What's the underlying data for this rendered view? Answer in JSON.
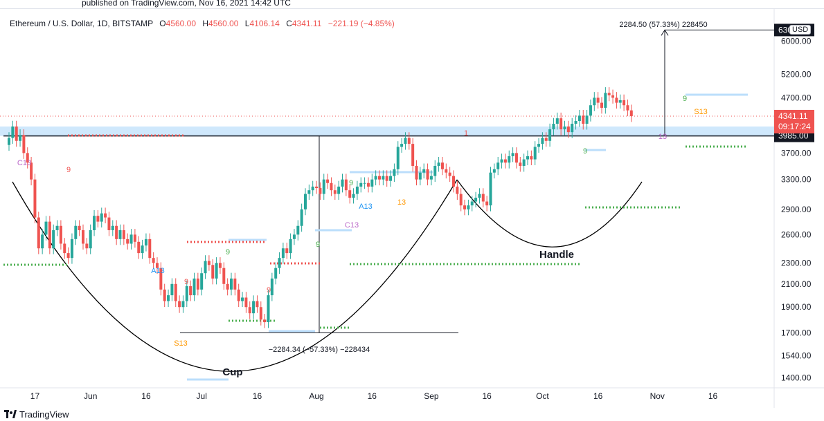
{
  "published_note": "published on TradingView.com, Nov 16, 2021 14:42 UTC",
  "legend": {
    "symbol": "Ethereum / U.S. Dollar, 1D, BITSTAMP",
    "o_label": "O",
    "o": "4560.00",
    "h_label": "H",
    "h": "4560.00",
    "l_label": "L",
    "l": "4106.14",
    "c_label": "C",
    "c": "4341.11",
    "change": "−221.19 (−4.85%)"
  },
  "currency": "USD",
  "brand": "TradingView",
  "colors": {
    "up": "#26a69a",
    "down": "#ef5350",
    "resistance_dot": "#ef5350",
    "support_dot": "#4caf50",
    "zone": "#bbdefb",
    "label_dark": "#131722"
  },
  "chart_data": {
    "type": "candlestick",
    "symbol": "ETHUSD",
    "timeframe": "1D",
    "y_scale": "log",
    "ylim": [
      1340,
      6900
    ],
    "y_ticks": [
      1400,
      1540,
      1700,
      1900,
      2100,
      2300,
      2600,
      2900,
      3300,
      3700,
      4700,
      5200,
      6000
    ],
    "x_ticks": [
      {
        "date": "2021-05-17",
        "label": "17"
      },
      {
        "date": "2021-06-01",
        "label": "Jun"
      },
      {
        "date": "2021-06-16",
        "label": "16"
      },
      {
        "date": "2021-07-01",
        "label": "Jul"
      },
      {
        "date": "2021-07-16",
        "label": "16"
      },
      {
        "date": "2021-08-01",
        "label": "Aug"
      },
      {
        "date": "2021-08-16",
        "label": "16"
      },
      {
        "date": "2021-09-01",
        "label": "Sep"
      },
      {
        "date": "2021-09-16",
        "label": "16"
      },
      {
        "date": "2021-10-01",
        "label": "Oct"
      },
      {
        "date": "2021-10-16",
        "label": "16"
      },
      {
        "date": "2021-11-01",
        "label": "Nov"
      },
      {
        "date": "2021-11-16",
        "label": "16"
      }
    ],
    "first_date": "2021-05-10",
    "last_date": "2021-11-16",
    "closes": [
      3950,
      4150,
      3900,
      4000,
      3700,
      3550,
      3300,
      2800,
      2450,
      2600,
      2750,
      2450,
      2650,
      2700,
      2500,
      2400,
      2350,
      2550,
      2700,
      2650,
      2500,
      2450,
      2650,
      2820,
      2750,
      2850,
      2800,
      2650,
      2700,
      2550,
      2650,
      2550,
      2500,
      2600,
      2520,
      2400,
      2480,
      2550,
      2350,
      2300,
      2250,
      2050,
      1950,
      2000,
      2100,
      1950,
      1900,
      1950,
      2080,
      2000,
      2150,
      2050,
      2200,
      2320,
      2280,
      2150,
      2300,
      2250,
      2100,
      2050,
      2150,
      2050,
      1950,
      1980,
      1900,
      1850,
      1950,
      1900,
      1800,
      1780,
      2000,
      2150,
      2250,
      2350,
      2450,
      2400,
      2550,
      2600,
      2700,
      2900,
      3100,
      3150,
      3200,
      3180,
      3100,
      3300,
      3250,
      3150,
      3100,
      3200,
      3300,
      3150,
      3050,
      3100,
      3200,
      3250,
      3250,
      3200,
      3300,
      3350,
      3300,
      3350,
      3280,
      3350,
      3450,
      3800,
      3850,
      3950,
      3850,
      3500,
      3300,
      3400,
      3450,
      3300,
      3350,
      3500,
      3550,
      3450,
      3400,
      3350,
      3200,
      3100,
      2950,
      2900,
      2950,
      3000,
      3050,
      3100,
      3000,
      2950,
      3400,
      3450,
      3550,
      3600,
      3550,
      3650,
      3700,
      3550,
      3500,
      3600,
      3650,
      3600,
      3800,
      3850,
      3950,
      3900,
      4100,
      4200,
      4300,
      4100,
      4150,
      4050,
      4200,
      4250,
      4350,
      4200,
      4350,
      4550,
      4700,
      4600,
      4500,
      4800,
      4750,
      4700,
      4600,
      4650,
      4550,
      4450,
      4341.11
    ],
    "price_lines": [
      {
        "label": "6300.00",
        "price": 6300,
        "style": "dark"
      },
      {
        "label": "3985.00",
        "price": 3985,
        "style": "dark"
      }
    ],
    "current_price": {
      "label": "4341.11",
      "countdown": "09:17:24"
    },
    "measure_top": {
      "label": "2284.50 (57.33%) 228450"
    },
    "measure_bottom": {
      "label": "−2284.34 (−57.33%) −228434"
    },
    "annotations": [
      {
        "text": "Cup"
      },
      {
        "text": "Handle"
      }
    ],
    "td_labels": [
      {
        "text": "C13",
        "kind": "purple"
      },
      {
        "text": "9",
        "kind": "red"
      },
      {
        "text": "A13",
        "kind": "blue"
      },
      {
        "text": "9",
        "kind": "red"
      },
      {
        "text": "S13",
        "kind": "orange"
      },
      {
        "text": "9",
        "kind": "green"
      },
      {
        "text": "9",
        "kind": "red"
      },
      {
        "text": "9",
        "kind": "green"
      },
      {
        "text": "9",
        "kind": "green"
      },
      {
        "text": "A13",
        "kind": "blue"
      },
      {
        "text": "C13",
        "kind": "purple"
      },
      {
        "text": "13",
        "kind": "orange"
      },
      {
        "text": "1",
        "kind": "red"
      },
      {
        "text": "9",
        "kind": "green"
      },
      {
        "text": "13",
        "kind": "purple"
      },
      {
        "text": "9",
        "kind": "green"
      },
      {
        "text": "S13",
        "kind": "orange"
      }
    ]
  }
}
